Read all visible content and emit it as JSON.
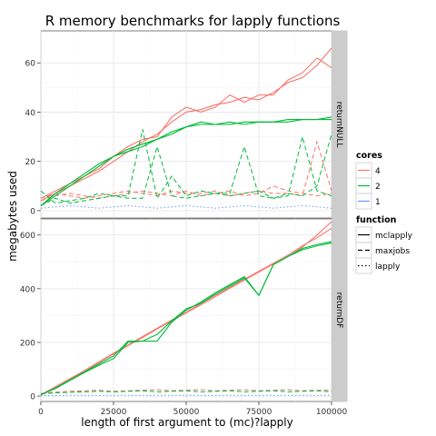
{
  "chart_data": {
    "type": "line",
    "title": "R memory benchmarks for lapply functions",
    "xlabel": "length of first argument to (mc)?lapply",
    "ylabel": "megabytes used",
    "xlim": [
      0,
      100000
    ],
    "x_ticks": [
      0,
      25000,
      50000,
      75000,
      100000
    ],
    "x_tick_labels": [
      "0",
      "25000",
      "50000",
      "75000",
      "100000"
    ],
    "x": [
      0,
      5000,
      10000,
      15000,
      20000,
      25000,
      30000,
      35000,
      40000,
      45000,
      50000,
      55000,
      60000,
      65000,
      70000,
      75000,
      80000,
      85000,
      90000,
      95000,
      100000
    ],
    "grid": true,
    "legends": [
      {
        "title": "cores",
        "placement": "right",
        "entries": [
          {
            "label": "4",
            "color": "#F8766D"
          },
          {
            "label": "2",
            "color": "#00BA38"
          },
          {
            "label": "1",
            "color": "#619CFF"
          }
        ]
      },
      {
        "title": "function",
        "placement": "right",
        "entries": [
          {
            "label": "mclapply",
            "linetype": "solid"
          },
          {
            "label": "maxjobs",
            "linetype": "dashed"
          },
          {
            "label": "lapply",
            "linetype": "dotted"
          }
        ]
      }
    ],
    "panels": [
      {
        "strip": "returnNULL",
        "ylim": [
          -3,
          73
        ],
        "y_ticks": [
          0,
          20,
          40,
          60
        ],
        "y_tick_labels": [
          "0",
          "20",
          "40",
          "60"
        ],
        "series": [
          {
            "cores": "4",
            "function": "mclapply",
            "values": [
              4,
              7,
              10,
              13,
              16,
              20,
              24,
              28,
              31,
              36,
              40,
              41,
              43,
              44,
              46,
              45,
              48,
              52,
              54,
              59,
              66
            ]
          },
          {
            "cores": "4",
            "function": "mclapply",
            "values": [
              5,
              8,
              11,
              14,
              17,
              22,
              26,
              29,
              30,
              38,
              42,
              40,
              42,
              47,
              44,
              47,
              47,
              53,
              56,
              62,
              58
            ]
          },
          {
            "cores": "4",
            "function": "maxjobs",
            "values": [
              5,
              7,
              6,
              5,
              6,
              7,
              8,
              7,
              6,
              8,
              7,
              7,
              8,
              6,
              7,
              8,
              7,
              7,
              6,
              28,
              8
            ]
          },
          {
            "cores": "4",
            "function": "maxjobs",
            "values": [
              4,
              6,
              7,
              6,
              5,
              6,
              7,
              8,
              7,
              6,
              8,
              6,
              7,
              8,
              6,
              7,
              10,
              8,
              7,
              6,
              7
            ]
          },
          {
            "cores": "2",
            "function": "mclapply",
            "values": [
              2,
              6,
              10,
              14,
              18,
              22,
              25,
              27,
              29,
              31,
              34,
              35,
              35,
              36,
              35,
              36,
              36,
              37,
              37,
              37,
              38
            ]
          },
          {
            "cores": "2",
            "function": "mclapply",
            "values": [
              2,
              7,
              11,
              15,
              19,
              22,
              24,
              26,
              29,
              32,
              34,
              36,
              35,
              35,
              36,
              36,
              36,
              36,
              37,
              37,
              37
            ]
          },
          {
            "cores": "2",
            "function": "maxjobs",
            "values": [
              8,
              3,
              4,
              5,
              7,
              6,
              6,
              33,
              5,
              14,
              6,
              8,
              7,
              7,
              26,
              6,
              5,
              7,
              6,
              10,
              31
            ]
          },
          {
            "cores": "2",
            "function": "maxjobs",
            "values": [
              2,
              5,
              3,
              4,
              5,
              6,
              5,
              5,
              26,
              6,
              5,
              6,
              7,
              6,
              7,
              8,
              5,
              6,
              30,
              8,
              6
            ]
          },
          {
            "cores": "1",
            "function": "lapply",
            "values": [
              1,
              1.5,
              2,
              1.5,
              1,
              1.5,
              2,
              1.5,
              1,
              1.5,
              2,
              1.5,
              1,
              1.5,
              2,
              1.5,
              1,
              1.5,
              2,
              1.5,
              1
            ]
          }
        ]
      },
      {
        "strip": "returnDF",
        "ylim": [
          -20,
          660
        ],
        "y_ticks": [
          0,
          200,
          400,
          600
        ],
        "y_tick_labels": [
          "0",
          "200",
          "400",
          "600"
        ],
        "series": [
          {
            "cores": "4",
            "function": "mclapply",
            "values": [
              5,
              35,
              65,
              95,
              128,
              160,
              190,
              222,
              253,
              283,
              312,
              345,
              375,
              405,
              435,
              465,
              495,
              525,
              560,
              590,
              625
            ]
          },
          {
            "cores": "4",
            "function": "mclapply",
            "values": [
              5,
              32,
              62,
              93,
              125,
              157,
              188,
              218,
              250,
              280,
              310,
              340,
              370,
              402,
              432,
              462,
              492,
              520,
              555,
              600,
              650
            ]
          },
          {
            "cores": "4",
            "function": "maxjobs",
            "values": [
              10,
              15,
              18,
              20,
              22,
              18,
              20,
              22,
              24,
              20,
              22,
              24,
              20,
              22,
              24,
              20,
              22,
              24,
              20,
              22,
              22
            ]
          },
          {
            "cores": "2",
            "function": "mclapply",
            "values": [
              5,
              30,
              60,
              90,
              120,
              150,
              205,
              205,
              230,
              280,
              325,
              345,
              380,
              410,
              440,
              375,
              490,
              520,
              545,
              560,
              570
            ]
          },
          {
            "cores": "2",
            "function": "mclapply",
            "values": [
              5,
              28,
              58,
              88,
              115,
              140,
              200,
              205,
              205,
              275,
              320,
              350,
              385,
              415,
              445,
              375,
              490,
              520,
              550,
              565,
              575
            ]
          },
          {
            "cores": "2",
            "function": "maxjobs",
            "values": [
              8,
              12,
              14,
              16,
              18,
              16,
              18,
              20,
              16,
              18,
              20,
              16,
              18,
              20,
              16,
              18,
              20,
              16,
              18,
              20,
              16
            ]
          },
          {
            "cores": "1",
            "function": "lapply",
            "values": [
              2,
              2,
              3,
              3,
              3,
              3,
              3,
              3,
              3,
              3,
              3,
              3,
              3,
              3,
              3,
              3,
              3,
              3,
              3,
              3,
              3
            ]
          }
        ]
      }
    ]
  }
}
